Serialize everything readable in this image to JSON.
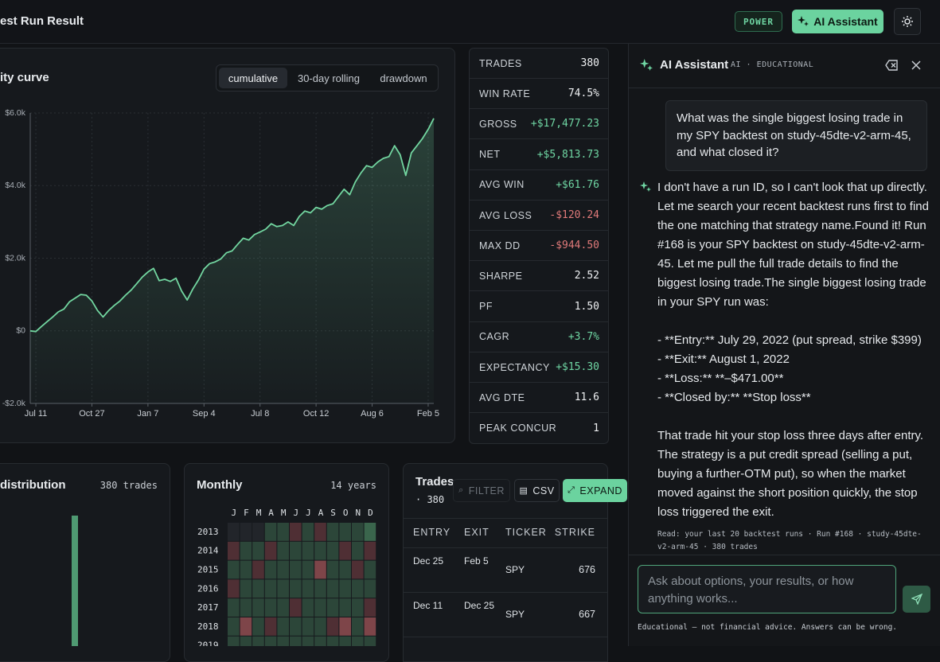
{
  "header": {
    "title": "est Run Result",
    "badge": "POWER",
    "assistant_button": "AI Assistant"
  },
  "equity_tabs": [
    "cumulative",
    "30-day rolling",
    "drawdown"
  ],
  "chart_data": [
    {
      "type": "line",
      "title": "ity curve",
      "color": "#72d6a0",
      "grid": true,
      "categories": [
        null,
        "Jul 11",
        null,
        null,
        null,
        null,
        null,
        null,
        null,
        null,
        null,
        "Oct 27",
        null,
        null,
        null,
        null,
        null,
        null,
        null,
        null,
        null,
        "Jan 7",
        null,
        null,
        null,
        null,
        null,
        null,
        null,
        null,
        null,
        "Sep 4",
        null,
        null,
        null,
        null,
        null,
        null,
        null,
        null,
        null,
        "Jul 8",
        null,
        null,
        null,
        null,
        null,
        null,
        null,
        null,
        null,
        "Oct 12",
        null,
        null,
        null,
        null,
        null,
        null,
        null,
        null,
        null,
        "Aug 6",
        null,
        null,
        null,
        null,
        null,
        null,
        null,
        null,
        null,
        "Feb 5",
        null
      ],
      "values": [
        0,
        -20,
        120,
        250,
        380,
        520,
        600,
        800,
        900,
        1000,
        980,
        820,
        560,
        380,
        560,
        700,
        820,
        980,
        1120,
        1300,
        1480,
        1620,
        1720,
        1380,
        1420,
        1360,
        1450,
        1100,
        850,
        1150,
        1400,
        1700,
        1850,
        1900,
        1980,
        2150,
        2200,
        2380,
        2550,
        2500,
        2650,
        2720,
        2800,
        2950,
        2870,
        2900,
        3000,
        2900,
        3150,
        3300,
        3250,
        3400,
        3350,
        3450,
        3500,
        3700,
        3900,
        3750,
        4100,
        4350,
        4550,
        4500,
        4650,
        4750,
        4800,
        5100,
        4850,
        4280,
        4900,
        5100,
        5300,
        5550,
        5850
      ],
      "ylim": [
        -2000,
        6000
      ],
      "yticks": [
        {
          "value": 6000,
          "label": "$6.0k"
        },
        {
          "value": 4000,
          "label": "$4.0k"
        },
        {
          "value": 2000,
          "label": "$2.0k"
        },
        {
          "value": 0,
          "label": "$0"
        },
        {
          "value": -2000,
          "label": "-$2.0k"
        }
      ]
    },
    {
      "type": "bar",
      "title": "distribution",
      "subtitle": "380 trades",
      "values": [
        96
      ],
      "ylim": [
        0,
        100
      ],
      "color": "#4f9a72"
    },
    {
      "type": "heatmap",
      "title": "Monthly",
      "subtitle": "14 years",
      "columns": [
        "J",
        "F",
        "M",
        "A",
        "M",
        "J",
        "J",
        "A",
        "S",
        "O",
        "N",
        "D"
      ],
      "rows": [
        "2013",
        "2014",
        "2015",
        "2016",
        "2017",
        "2018",
        "2019"
      ],
      "values": [
        [
          null,
          null,
          null,
          1,
          1,
          -1,
          1,
          -1,
          1,
          1,
          1,
          2
        ],
        [
          -1,
          1,
          1,
          -1,
          1,
          1,
          1,
          1,
          1,
          -1,
          1,
          -1
        ],
        [
          1,
          1,
          -1,
          1,
          1,
          1,
          1,
          -2,
          1,
          1,
          -1,
          1
        ],
        [
          -1,
          1,
          1,
          1,
          1,
          1,
          1,
          1,
          1,
          1,
          1,
          1
        ],
        [
          1,
          1,
          1,
          1,
          1,
          -1,
          1,
          1,
          1,
          1,
          1,
          -1
        ],
        [
          1,
          -2,
          1,
          -1,
          1,
          1,
          1,
          1,
          -1,
          -2,
          1,
          -2
        ],
        [
          1,
          1,
          1,
          1,
          1,
          1,
          1,
          1,
          1,
          1,
          1,
          1
        ]
      ],
      "scale": [
        {
          "value": -2,
          "color": "#7e4549"
        },
        {
          "value": -1,
          "color": "#4f2f34"
        },
        {
          "value": 1,
          "color": "#2c4639"
        },
        {
          "value": 2,
          "color": "#3a654c"
        }
      ]
    }
  ],
  "stats": [
    {
      "label": "TRADES",
      "value": "380",
      "tone": "plain"
    },
    {
      "label": "WIN RATE",
      "value": "74.5%",
      "tone": "plain"
    },
    {
      "label": "GROSS",
      "value": "+$17,477.23",
      "tone": "pos"
    },
    {
      "label": "NET",
      "value": "+$5,813.73",
      "tone": "pos"
    },
    {
      "label": "AVG WIN",
      "value": "+$61.76",
      "tone": "pos"
    },
    {
      "label": "AVG LOSS",
      "value": "-$120.24",
      "tone": "neg"
    },
    {
      "label": "MAX DD",
      "value": "-$944.50",
      "tone": "neg"
    },
    {
      "label": "SHARPE",
      "value": "2.52",
      "tone": "plain"
    },
    {
      "label": "PF",
      "value": "1.50",
      "tone": "plain"
    },
    {
      "label": "CAGR",
      "value": "+3.7%",
      "tone": "pos"
    },
    {
      "label": "EXPECTANCY",
      "value": "+$15.30",
      "tone": "pos"
    },
    {
      "label": "AVG DTE",
      "value": "11.6",
      "tone": "plain"
    },
    {
      "label": "PEAK CONCUR",
      "value": "1",
      "tone": "plain"
    }
  ],
  "trades": {
    "title": "Trades",
    "count": "· 380",
    "buttons": [
      "FILTER",
      "CSV",
      "EXPAND"
    ],
    "columns": [
      "ENTRY",
      "EXIT",
      "TICKER",
      "STRIKE"
    ],
    "rows": [
      [
        "Dec 25",
        "Feb 5",
        "SPY",
        "676"
      ],
      [
        "Dec 11",
        "Dec 25",
        "SPY",
        "667"
      ]
    ]
  },
  "assistant": {
    "title": "AI Assistant",
    "tag": "AI · EDUCATIONAL",
    "user_message": "What was the single biggest losing trade in my SPY backtest on study-45dte-v2-arm-45, and what closed it?",
    "reply_intro": "I don't have a run ID, so I can't look that up directly. Let me search your recent backtest runs first to find the one matching that strategy name.Found it! Run #168 is your SPY backtest on study-45dte-v2-arm-45. Let me pull the full trade details to find the biggest losing trade.The single biggest losing trade in your SPY run was:",
    "reply_list": [
      "- **Entry:** July 29, 2022 (put spread, strike $399)",
      "- **Exit:** August 1, 2022",
      "- **Loss:** **–$471.00**",
      "- **Closed by:** **Stop loss**"
    ],
    "reply_outro": "That trade hit your stop loss three days after entry. The strategy is a put credit spread (selling a put, buying a further-OTM put), so when the market moved against the short position quickly, the stop loss triggered the exit.",
    "sources": "Read: your last 20 backtest runs · Run #168 · study-45dte-v2-arm-45 · 380 trades",
    "placeholder": "Ask about options, your results, or how anything works...",
    "disclaimer": "Educational — not financial advice. Answers can be wrong."
  }
}
